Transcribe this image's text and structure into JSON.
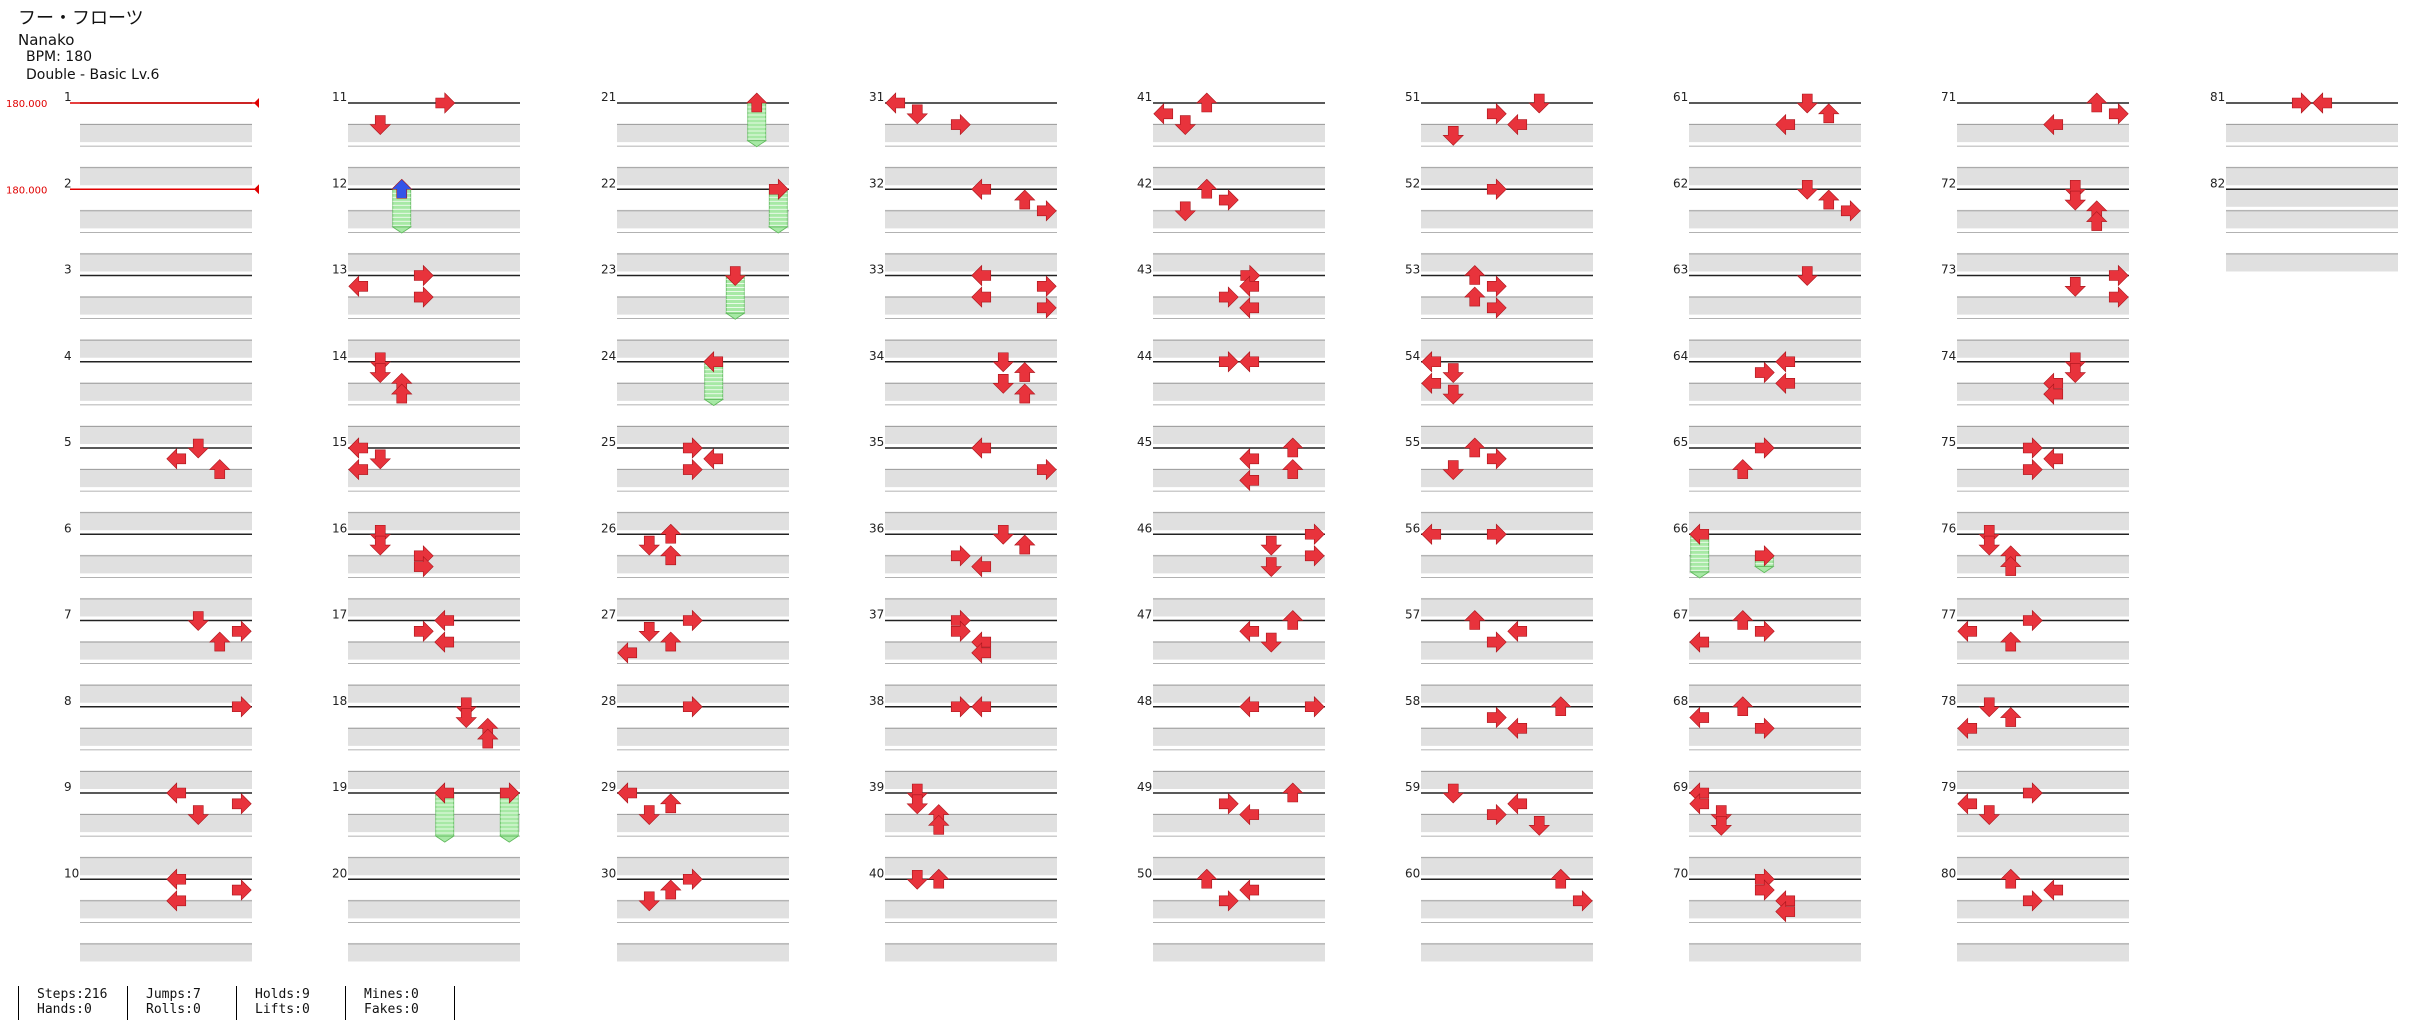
{
  "song": {
    "title": "フー・フローツ",
    "artist": "Nanako",
    "bpm_text": "BPM: 180",
    "chart_text": "Double - Basic  Lv.6"
  },
  "bpm_markers": [
    {
      "measure": 1,
      "beat": 0,
      "label": "180.000"
    },
    {
      "measure": 2,
      "beat": 0,
      "label": "180.000"
    }
  ],
  "measure_count": 82,
  "notes": [
    {
      "m": 5,
      "b": 0,
      "d": "down"
    },
    {
      "m": 5,
      "b": 0.5,
      "d": "left"
    },
    {
      "m": 5,
      "b": 1,
      "d": "up"
    },
    {
      "m": 7,
      "b": 0,
      "d": "down"
    },
    {
      "m": 7,
      "b": 0.5,
      "d": "right"
    },
    {
      "m": 7,
      "b": 1,
      "d": "up"
    },
    {
      "m": 8,
      "b": 0,
      "d": "right"
    },
    {
      "m": 9,
      "b": 0,
      "d": "left"
    },
    {
      "m": 9,
      "b": 0.5,
      "d": "right"
    },
    {
      "m": 9,
      "b": 1,
      "d": "down"
    },
    {
      "m": 10,
      "b": 0,
      "d": "left"
    },
    {
      "m": 10,
      "b": 0.5,
      "d": "right"
    },
    {
      "m": 10,
      "b": 1,
      "d": "left"
    },
    {
      "m": 11,
      "b": 0,
      "d": "right",
      "l": 4
    },
    {
      "m": 11,
      "b": 1,
      "d": "down",
      "l": 1
    },
    {
      "m": 12,
      "b": 0,
      "d": "up",
      "l": 2,
      "c": "blue",
      "hold": 1.75
    },
    {
      "m": 13,
      "b": 0,
      "d": "right",
      "l": 3
    },
    {
      "m": 13,
      "b": 0.5,
      "d": "left",
      "l": 0
    },
    {
      "m": 13,
      "b": 1,
      "d": "right",
      "l": 3
    },
    {
      "m": 14,
      "b": 0,
      "d": "down",
      "l": 1
    },
    {
      "m": 14,
      "b": 0.5,
      "d": "down",
      "l": 1
    },
    {
      "m": 14,
      "b": 1,
      "d": "up",
      "l": 2
    },
    {
      "m": 14,
      "b": 1.5,
      "d": "up",
      "l": 2
    },
    {
      "m": 15,
      "b": 0,
      "d": "left",
      "l": 0
    },
    {
      "m": 15,
      "b": 0.5,
      "d": "down",
      "l": 1
    },
    {
      "m": 15,
      "b": 1,
      "d": "left",
      "l": 0
    },
    {
      "m": 16,
      "b": 0,
      "d": "down",
      "l": 1
    },
    {
      "m": 16,
      "b": 0.5,
      "d": "down",
      "l": 1
    },
    {
      "m": 16,
      "b": 1,
      "d": "right",
      "l": 3
    },
    {
      "m": 16,
      "b": 1.5,
      "d": "right",
      "l": 3
    },
    {
      "m": 17,
      "b": 0,
      "d": "left",
      "l": 4
    },
    {
      "m": 17,
      "b": 0.5,
      "d": "right",
      "l": 3
    },
    {
      "m": 17,
      "b": 1,
      "d": "left",
      "l": 4
    },
    {
      "m": 18,
      "b": 0,
      "d": "down",
      "l": 5
    },
    {
      "m": 18,
      "b": 0.5,
      "d": "down",
      "l": 5
    },
    {
      "m": 18,
      "b": 1,
      "d": "up",
      "l": 6
    },
    {
      "m": 18,
      "b": 1.5,
      "d": "up",
      "l": 6
    },
    {
      "m": 19,
      "b": 0,
      "d": "left",
      "l": 4,
      "hold": 2
    },
    {
      "m": 19,
      "b": 0,
      "d": "right",
      "l": 7,
      "hold": 2
    },
    {
      "m": 21,
      "b": 0,
      "d": "up",
      "l": 6,
      "hold": 1.75
    },
    {
      "m": 22,
      "b": 0,
      "d": "right",
      "l": 7,
      "hold": 1.75
    },
    {
      "m": 23,
      "b": 0,
      "d": "down",
      "l": 5,
      "hold": 1.75
    },
    {
      "m": 24,
      "b": 0,
      "d": "left",
      "l": 4,
      "hold": 1.75
    },
    {
      "m": 25,
      "b": 0,
      "d": "right",
      "l": 3
    },
    {
      "m": 25,
      "b": 0.5,
      "d": "left",
      "l": 4
    },
    {
      "m": 25,
      "b": 1,
      "d": "right",
      "l": 3
    },
    {
      "m": 26,
      "b": 0,
      "d": "up",
      "l": 2
    },
    {
      "m": 26,
      "b": 0.5,
      "d": "down",
      "l": 1
    },
    {
      "m": 26,
      "b": 1,
      "d": "up",
      "l": 2
    },
    {
      "m": 27,
      "b": 0,
      "d": "right",
      "l": 3
    },
    {
      "m": 27,
      "b": 0.5,
      "d": "down",
      "l": 1
    },
    {
      "m": 27,
      "b": 1,
      "d": "up",
      "l": 2
    },
    {
      "m": 27,
      "b": 1.5,
      "d": "left",
      "l": 0
    },
    {
      "m": 28,
      "b": 0,
      "d": "right",
      "l": 3
    },
    {
      "m": 29,
      "b": 0,
      "d": "left",
      "l": 0
    },
    {
      "m": 29,
      "b": 0.5,
      "d": "up",
      "l": 2
    },
    {
      "m": 29,
      "b": 1,
      "d": "down",
      "l": 1
    },
    {
      "m": 30,
      "b": 0,
      "d": "right",
      "l": 3
    },
    {
      "m": 30,
      "b": 0.5,
      "d": "up",
      "l": 2
    },
    {
      "m": 30,
      "b": 1,
      "d": "down",
      "l": 1
    },
    {
      "m": 31,
      "b": 0,
      "d": "left",
      "l": 0
    },
    {
      "m": 31,
      "b": 0.5,
      "d": "down",
      "l": 1
    },
    {
      "m": 31,
      "b": 1,
      "d": "right",
      "l": 3
    },
    {
      "m": 32,
      "b": 0,
      "d": "left",
      "l": 4
    },
    {
      "m": 32,
      "b": 0.5,
      "d": "up",
      "l": 6
    },
    {
      "m": 32,
      "b": 1,
      "d": "right",
      "l": 7
    },
    {
      "m": 33,
      "b": 0,
      "d": "left",
      "l": 4
    },
    {
      "m": 33,
      "b": 0.5,
      "d": "right",
      "l": 7
    },
    {
      "m": 33,
      "b": 1,
      "d": "left",
      "l": 4
    },
    {
      "m": 33,
      "b": 1.5,
      "d": "right",
      "l": 7
    },
    {
      "m": 34,
      "b": 0,
      "d": "down",
      "l": 5
    },
    {
      "m": 34,
      "b": 0.5,
      "d": "up",
      "l": 6
    },
    {
      "m": 34,
      "b": 1,
      "d": "down",
      "l": 5
    },
    {
      "m": 34,
      "b": 1.5,
      "d": "up",
      "l": 6
    },
    {
      "m": 35,
      "b": 0,
      "d": "left",
      "l": 4
    },
    {
      "m": 35,
      "b": 1,
      "d": "right",
      "l": 7
    },
    {
      "m": 36,
      "b": 0,
      "d": "down",
      "l": 5
    },
    {
      "m": 36,
      "b": 0.5,
      "d": "up",
      "l": 6
    },
    {
      "m": 36,
      "b": 1,
      "d": "right",
      "l": 3
    },
    {
      "m": 36,
      "b": 1.5,
      "d": "left",
      "l": 4
    },
    {
      "m": 37,
      "b": 0,
      "d": "right",
      "l": 3
    },
    {
      "m": 37,
      "b": 0.5,
      "d": "right",
      "l": 3
    },
    {
      "m": 37,
      "b": 1,
      "d": "left",
      "l": 4
    },
    {
      "m": 37,
      "b": 1.5,
      "d": "left",
      "l": 4
    },
    {
      "m": 38,
      "b": 0,
      "d": "right",
      "l": 3
    },
    {
      "m": 38,
      "b": 0,
      "d": "left",
      "l": 4
    },
    {
      "m": 39,
      "b": 0,
      "d": "down",
      "l": 1
    },
    {
      "m": 39,
      "b": 0.5,
      "d": "down",
      "l": 1
    },
    {
      "m": 39,
      "b": 1,
      "d": "up",
      "l": 2
    },
    {
      "m": 39,
      "b": 1.5,
      "d": "up",
      "l": 2
    },
    {
      "m": 40,
      "b": 0,
      "d": "down",
      "l": 1
    },
    {
      "m": 40,
      "b": 0,
      "d": "up",
      "l": 2
    },
    {
      "m": 41,
      "b": 0,
      "d": "up",
      "l": 2
    },
    {
      "m": 41,
      "b": 0.5,
      "d": "left",
      "l": 0
    },
    {
      "m": 41,
      "b": 1,
      "d": "down",
      "l": 1
    },
    {
      "m": 42,
      "b": 0,
      "d": "up",
      "l": 2
    },
    {
      "m": 42,
      "b": 0.5,
      "d": "right",
      "l": 3
    },
    {
      "m": 42,
      "b": 1,
      "d": "down",
      "l": 1
    },
    {
      "m": 43,
      "b": 0,
      "d": "right",
      "l": 4
    },
    {
      "m": 43,
      "b": 0.5,
      "d": "left",
      "l": 4
    },
    {
      "m": 43,
      "b": 1,
      "d": "right",
      "l": 3
    },
    {
      "m": 43,
      "b": 1.5,
      "d": "left",
      "l": 4
    },
    {
      "m": 44,
      "b": 0,
      "d": "right",
      "l": 3
    },
    {
      "m": 44,
      "b": 0,
      "d": "left",
      "l": 4
    },
    {
      "m": 45,
      "b": 0,
      "d": "up",
      "l": 6
    },
    {
      "m": 45,
      "b": 0.5,
      "d": "left",
      "l": 4
    },
    {
      "m": 45,
      "b": 1,
      "d": "up",
      "l": 6
    },
    {
      "m": 45,
      "b": 1.5,
      "d": "left",
      "l": 4
    },
    {
      "m": 46,
      "b": 0,
      "d": "right",
      "l": 7
    },
    {
      "m": 46,
      "b": 0.5,
      "d": "down",
      "l": 5
    },
    {
      "m": 46,
      "b": 1,
      "d": "right",
      "l": 7
    },
    {
      "m": 46,
      "b": 1.5,
      "d": "down",
      "l": 5
    },
    {
      "m": 47,
      "b": 0,
      "d": "up",
      "l": 6
    },
    {
      "m": 47,
      "b": 0.5,
      "d": "left",
      "l": 4
    },
    {
      "m": 47,
      "b": 1,
      "d": "down",
      "l": 5
    },
    {
      "m": 48,
      "b": 0,
      "d": "left",
      "l": 4
    },
    {
      "m": 48,
      "b": 0,
      "d": "right",
      "l": 7
    },
    {
      "m": 49,
      "b": 0,
      "d": "up",
      "l": 6
    },
    {
      "m": 49,
      "b": 0.5,
      "d": "right",
      "l": 3
    },
    {
      "m": 49,
      "b": 1,
      "d": "left",
      "l": 4
    },
    {
      "m": 50,
      "b": 0,
      "d": "up",
      "l": 2
    },
    {
      "m": 50,
      "b": 0.5,
      "d": "left",
      "l": 4
    },
    {
      "m": 50,
      "b": 1,
      "d": "right",
      "l": 3
    },
    {
      "m": 51,
      "b": 0,
      "d": "down",
      "l": 5
    },
    {
      "m": 51,
      "b": 0.5,
      "d": "right",
      "l": 3
    },
    {
      "m": 51,
      "b": 1,
      "d": "left",
      "l": 4
    },
    {
      "m": 51,
      "b": 1.5,
      "d": "down",
      "l": 1
    },
    {
      "m": 52,
      "b": 0,
      "d": "right",
      "l": 3
    },
    {
      "m": 53,
      "b": 0,
      "d": "up",
      "l": 2
    },
    {
      "m": 53,
      "b": 0.5,
      "d": "right",
      "l": 3
    },
    {
      "m": 53,
      "b": 1,
      "d": "up",
      "l": 2
    },
    {
      "m": 53,
      "b": 1.5,
      "d": "right",
      "l": 3
    },
    {
      "m": 54,
      "b": 0,
      "d": "left",
      "l": 0
    },
    {
      "m": 54,
      "b": 0.5,
      "d": "down",
      "l": 1
    },
    {
      "m": 54,
      "b": 1,
      "d": "left",
      "l": 0
    },
    {
      "m": 54,
      "b": 1.5,
      "d": "down",
      "l": 1
    },
    {
      "m": 55,
      "b": 0,
      "d": "up",
      "l": 2
    },
    {
      "m": 55,
      "b": 0.5,
      "d": "right",
      "l": 3
    },
    {
      "m": 55,
      "b": 1,
      "d": "down",
      "l": 1
    },
    {
      "m": 56,
      "b": 0,
      "d": "left",
      "l": 0
    },
    {
      "m": 56,
      "b": 0,
      "d": "right",
      "l": 3
    },
    {
      "m": 57,
      "b": 0,
      "d": "up",
      "l": 2
    },
    {
      "m": 57,
      "b": 0.5,
      "d": "left",
      "l": 4
    },
    {
      "m": 57,
      "b": 1,
      "d": "right",
      "l": 3
    },
    {
      "m": 58,
      "b": 0,
      "d": "up",
      "l": 6
    },
    {
      "m": 58,
      "b": 0.5,
      "d": "right",
      "l": 3
    },
    {
      "m": 58,
      "b": 1,
      "d": "left",
      "l": 4
    },
    {
      "m": 59,
      "b": 0,
      "d": "down",
      "l": 1
    },
    {
      "m": 59,
      "b": 0.5,
      "d": "left",
      "l": 4
    },
    {
      "m": 59,
      "b": 1,
      "d": "right",
      "l": 3
    },
    {
      "m": 59,
      "b": 1.5,
      "d": "down",
      "l": 5
    },
    {
      "m": 60,
      "b": 0,
      "d": "up",
      "l": 6
    },
    {
      "m": 60,
      "b": 1,
      "d": "right",
      "l": 7
    },
    {
      "m": 61,
      "b": 0,
      "d": "down",
      "l": 5
    },
    {
      "m": 61,
      "b": 0.5,
      "d": "up",
      "l": 6
    },
    {
      "m": 61,
      "b": 1,
      "d": "left",
      "l": 4
    },
    {
      "m": 62,
      "b": 0,
      "d": "down",
      "l": 5
    },
    {
      "m": 62,
      "b": 0.5,
      "d": "up",
      "l": 6
    },
    {
      "m": 62,
      "b": 1,
      "d": "right",
      "l": 7
    },
    {
      "m": 63,
      "b": 0,
      "d": "down",
      "l": 5
    },
    {
      "m": 64,
      "b": 0,
      "d": "left",
      "l": 4
    },
    {
      "m": 64,
      "b": 0.5,
      "d": "right",
      "l": 3
    },
    {
      "m": 64,
      "b": 1,
      "d": "left",
      "l": 4
    },
    {
      "m": 65,
      "b": 0,
      "d": "right",
      "l": 3
    },
    {
      "m": 65,
      "b": 1,
      "d": "up",
      "l": 2
    },
    {
      "m": 66,
      "b": 0,
      "d": "left",
      "l": 0,
      "hold": 1.75
    },
    {
      "m": 66,
      "b": 1,
      "d": "right",
      "l": 3,
      "hold": 0.5
    },
    {
      "m": 67,
      "b": 0,
      "d": "up",
      "l": 2
    },
    {
      "m": 67,
      "b": 0.5,
      "d": "right",
      "l": 3
    },
    {
      "m": 67,
      "b": 1,
      "d": "left",
      "l": 0
    },
    {
      "m": 68,
      "b": 0,
      "d": "up",
      "l": 2
    },
    {
      "m": 68,
      "b": 0.5,
      "d": "left",
      "l": 0
    },
    {
      "m": 68,
      "b": 1,
      "d": "right",
      "l": 3
    },
    {
      "m": 69,
      "b": 0,
      "d": "left",
      "l": 0
    },
    {
      "m": 69,
      "b": 0.5,
      "d": "left",
      "l": 0
    },
    {
      "m": 69,
      "b": 1,
      "d": "down",
      "l": 1
    },
    {
      "m": 69,
      "b": 1.5,
      "d": "down",
      "l": 1
    },
    {
      "m": 70,
      "b": 0,
      "d": "right",
      "l": 3
    },
    {
      "m": 70,
      "b": 0.5,
      "d": "right",
      "l": 3
    },
    {
      "m": 70,
      "b": 1,
      "d": "left",
      "l": 4
    },
    {
      "m": 70,
      "b": 1.5,
      "d": "left",
      "l": 4
    },
    {
      "m": 71,
      "b": 0,
      "d": "up",
      "l": 6
    },
    {
      "m": 71,
      "b": 0.5,
      "d": "right",
      "l": 7
    },
    {
      "m": 71,
      "b": 1,
      "d": "left",
      "l": 4
    },
    {
      "m": 72,
      "b": 0,
      "d": "down",
      "l": 5
    },
    {
      "m": 72,
      "b": 0.5,
      "d": "down",
      "l": 5
    },
    {
      "m": 72,
      "b": 1,
      "d": "up",
      "l": 6
    },
    {
      "m": 72,
      "b": 1.5,
      "d": "up",
      "l": 6
    },
    {
      "m": 73,
      "b": 0,
      "d": "right",
      "l": 7
    },
    {
      "m": 73,
      "b": 0.5,
      "d": "down",
      "l": 5
    },
    {
      "m": 73,
      "b": 1,
      "d": "right",
      "l": 7
    },
    {
      "m": 74,
      "b": 0,
      "d": "down",
      "l": 5
    },
    {
      "m": 74,
      "b": 0.5,
      "d": "down",
      "l": 5
    },
    {
      "m": 74,
      "b": 1,
      "d": "left",
      "l": 4
    },
    {
      "m": 74,
      "b": 1.5,
      "d": "left",
      "l": 4
    },
    {
      "m": 75,
      "b": 0,
      "d": "right",
      "l": 3
    },
    {
      "m": 75,
      "b": 0.5,
      "d": "left",
      "l": 4
    },
    {
      "m": 75,
      "b": 1,
      "d": "right",
      "l": 3
    },
    {
      "m": 76,
      "b": 0,
      "d": "down",
      "l": 1
    },
    {
      "m": 76,
      "b": 0.5,
      "d": "down",
      "l": 1
    },
    {
      "m": 76,
      "b": 1,
      "d": "up",
      "l": 2
    },
    {
      "m": 76,
      "b": 1.5,
      "d": "up",
      "l": 2
    },
    {
      "m": 77,
      "b": 0,
      "d": "right",
      "l": 3
    },
    {
      "m": 77,
      "b": 0.5,
      "d": "left",
      "l": 0
    },
    {
      "m": 77,
      "b": 1,
      "d": "up",
      "l": 2
    },
    {
      "m": 78,
      "b": 0,
      "d": "down",
      "l": 1
    },
    {
      "m": 78,
      "b": 0.5,
      "d": "up",
      "l": 2
    },
    {
      "m": 78,
      "b": 1,
      "d": "left",
      "l": 0
    },
    {
      "m": 79,
      "b": 0,
      "d": "right",
      "l": 3
    },
    {
      "m": 79,
      "b": 0.5,
      "d": "left",
      "l": 0
    },
    {
      "m": 79,
      "b": 1,
      "d": "down",
      "l": 1
    },
    {
      "m": 80,
      "b": 0,
      "d": "up",
      "l": 2
    },
    {
      "m": 80,
      "b": 0.5,
      "d": "left",
      "l": 4
    },
    {
      "m": 80,
      "b": 1,
      "d": "right",
      "l": 3
    },
    {
      "m": 81,
      "b": 0,
      "d": "right",
      "l": 3
    },
    {
      "m": 81,
      "b": 0,
      "d": "left",
      "l": 4
    }
  ],
  "stats": {
    "steps": "Steps:216",
    "hands": "Hands:0",
    "jumps": "Jumps:7",
    "rolls": "Rolls:0",
    "holds": "Holds:9",
    "lifts": "Lifts:0",
    "mines": "Mines:0",
    "fakes": "Fakes:0"
  },
  "colors": {
    "arrow": "#e8333c",
    "arrow_quarter": "#3354e8",
    "hold": "#a7e9a5",
    "bpm": "#e00000",
    "band": "#e0e0e0"
  }
}
